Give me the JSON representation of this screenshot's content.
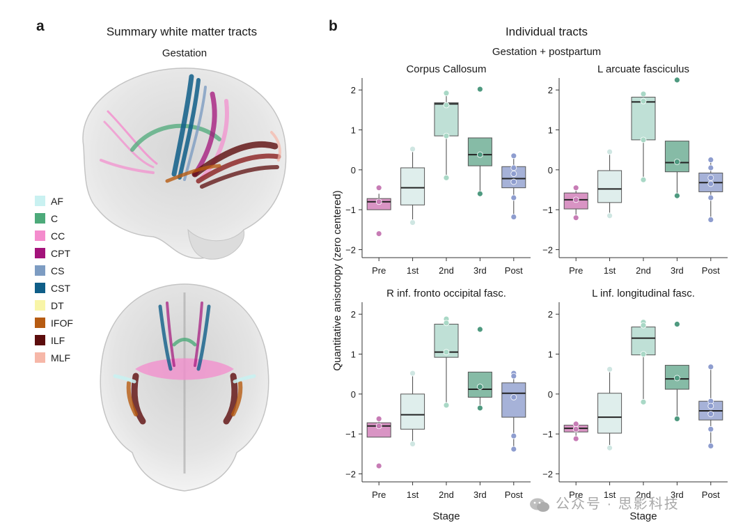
{
  "panel_a": {
    "letter": "a",
    "title": "Summary white matter tracts",
    "subtitle": "Gestation",
    "legend": [
      {
        "label": "AF",
        "color": "#c9f1f1"
      },
      {
        "label": "C",
        "color": "#4daa7a"
      },
      {
        "label": "CC",
        "color": "#f48ccd"
      },
      {
        "label": "CPT",
        "color": "#a3137a"
      },
      {
        "label": "CS",
        "color": "#7d9cc2"
      },
      {
        "label": "CST",
        "color": "#0f5e88"
      },
      {
        "label": "DT",
        "color": "#f8f5a8"
      },
      {
        "label": "IFOF",
        "color": "#b65b12"
      },
      {
        "label": "ILF",
        "color": "#5c0d0d"
      },
      {
        "label": "MLF",
        "color": "#f6b7a8"
      }
    ]
  },
  "panel_b": {
    "letter": "b",
    "title": "Individual tracts",
    "subtitle": "Gestation + postpartum",
    "ylabel": "Quantitative anisotropy (zero centered)",
    "xlabel": "Stage"
  },
  "chart_data": [
    {
      "type": "box",
      "title": "Corpus Callosum",
      "categories": [
        "Pre",
        "1st",
        "2nd",
        "3rd",
        "Post"
      ],
      "ylim": [
        -2.2,
        2.3
      ],
      "yticks": [
        -2,
        -1,
        0,
        1,
        2
      ],
      "colors": [
        "#d994c4",
        "#dfeeec",
        "#bfe0d6",
        "#86bba6",
        "#a6b2d8"
      ],
      "point_colors": [
        "#c77cb5",
        "#cfe6e2",
        "#a9d8c6",
        "#4f9a80",
        "#8e9dcf"
      ],
      "boxes": [
        {
          "q1": -1.0,
          "median": -0.8,
          "q3": -0.72,
          "whisker_low": -1.0,
          "whisker_high": -0.6,
          "points": [
            -0.45,
            -0.8,
            -1.6
          ]
        },
        {
          "q1": -0.88,
          "median": -0.45,
          "q3": 0.05,
          "whisker_low": -1.3,
          "whisker_high": 0.5,
          "points": [
            0.52,
            -1.32
          ]
        },
        {
          "q1": 0.85,
          "median": 1.65,
          "q3": 1.68,
          "whisker_low": -0.2,
          "whisker_high": 1.9,
          "points": [
            1.92,
            1.62,
            0.85,
            -0.2
          ]
        },
        {
          "q1": 0.1,
          "median": 0.38,
          "q3": 0.8,
          "whisker_low": -0.6,
          "whisker_high": 0.8,
          "points": [
            2.02,
            0.38,
            -0.6
          ]
        },
        {
          "q1": -0.45,
          "median": -0.22,
          "q3": 0.08,
          "whisker_low": -1.18,
          "whisker_high": 0.35,
          "points": [
            0.35,
            0.05,
            -0.1,
            -0.3,
            -0.7,
            -1.18
          ]
        }
      ]
    },
    {
      "type": "box",
      "title": "L arcuate fasciculus",
      "categories": [
        "Pre",
        "1st",
        "2nd",
        "3rd",
        "Post"
      ],
      "ylim": [
        -2.2,
        2.3
      ],
      "yticks": [
        -2,
        -1,
        0,
        1,
        2
      ],
      "colors": [
        "#d994c4",
        "#dfeeec",
        "#bfe0d6",
        "#86bba6",
        "#a6b2d8"
      ],
      "point_colors": [
        "#c77cb5",
        "#cfe6e2",
        "#a9d8c6",
        "#4f9a80",
        "#8e9dcf"
      ],
      "boxes": [
        {
          "q1": -0.98,
          "median": -0.75,
          "q3": -0.58,
          "whisker_low": -1.2,
          "whisker_high": -0.45,
          "points": [
            -0.45,
            -0.75,
            -1.2
          ]
        },
        {
          "q1": -0.82,
          "median": -0.48,
          "q3": -0.02,
          "whisker_low": -1.15,
          "whisker_high": 0.45,
          "points": [
            0.45,
            -1.15
          ]
        },
        {
          "q1": 0.75,
          "median": 1.7,
          "q3": 1.82,
          "whisker_low": -0.25,
          "whisker_high": 1.9,
          "points": [
            1.9,
            1.72,
            0.75,
            -0.25
          ]
        },
        {
          "q1": -0.05,
          "median": 0.18,
          "q3": 0.72,
          "whisker_low": -0.65,
          "whisker_high": 0.72,
          "points": [
            2.25,
            0.2,
            -0.65
          ]
        },
        {
          "q1": -0.55,
          "median": -0.32,
          "q3": -0.08,
          "whisker_low": -1.25,
          "whisker_high": 0.25,
          "points": [
            0.25,
            0.05,
            -0.2,
            -0.35,
            -0.7,
            -1.25
          ]
        }
      ]
    },
    {
      "type": "box",
      "title": "R inf. fronto occipital fasc.",
      "categories": [
        "Pre",
        "1st",
        "2nd",
        "3rd",
        "Post"
      ],
      "ylim": [
        -2.2,
        2.3
      ],
      "yticks": [
        -2,
        -1,
        0,
        1,
        2
      ],
      "colors": [
        "#d994c4",
        "#dfeeec",
        "#bfe0d6",
        "#86bba6",
        "#a6b2d8"
      ],
      "point_colors": [
        "#c77cb5",
        "#cfe6e2",
        "#a9d8c6",
        "#4f9a80",
        "#8e9dcf"
      ],
      "boxes": [
        {
          "q1": -1.08,
          "median": -0.8,
          "q3": -0.72,
          "whisker_low": -1.08,
          "whisker_high": -0.62,
          "points": [
            -0.62,
            -0.8,
            -1.8
          ]
        },
        {
          "q1": -0.88,
          "median": -0.52,
          "q3": 0.0,
          "whisker_low": -1.25,
          "whisker_high": 0.52,
          "points": [
            0.52,
            -1.25
          ]
        },
        {
          "q1": 0.92,
          "median": 1.05,
          "q3": 1.75,
          "whisker_low": -0.28,
          "whisker_high": 1.88,
          "points": [
            1.88,
            1.78,
            1.05,
            -0.28
          ]
        },
        {
          "q1": -0.08,
          "median": 0.12,
          "q3": 0.55,
          "whisker_low": -0.35,
          "whisker_high": 0.55,
          "points": [
            1.62,
            0.18,
            -0.35
          ]
        },
        {
          "q1": -0.58,
          "median": 0.02,
          "q3": 0.28,
          "whisker_low": -1.38,
          "whisker_high": 0.52,
          "points": [
            0.52,
            0.45,
            -0.08,
            -1.05,
            -1.38
          ]
        }
      ]
    },
    {
      "type": "box",
      "title": "L inf. longitudinal fasc.",
      "categories": [
        "Pre",
        "1st",
        "2nd",
        "3rd",
        "Post"
      ],
      "ylim": [
        -2.2,
        2.3
      ],
      "yticks": [
        -2,
        -1,
        0,
        1,
        2
      ],
      "colors": [
        "#d994c4",
        "#dfeeec",
        "#bfe0d6",
        "#86bba6",
        "#a6b2d8"
      ],
      "point_colors": [
        "#c77cb5",
        "#cfe6e2",
        "#a9d8c6",
        "#4f9a80",
        "#8e9dcf"
      ],
      "boxes": [
        {
          "q1": -0.95,
          "median": -0.86,
          "q3": -0.78,
          "whisker_low": -1.12,
          "whisker_high": -0.72,
          "points": [
            -0.75,
            -0.88,
            -1.12
          ]
        },
        {
          "q1": -0.98,
          "median": -0.58,
          "q3": 0.02,
          "whisker_low": -1.35,
          "whisker_high": 0.62,
          "points": [
            0.62,
            -1.35
          ]
        },
        {
          "q1": 0.98,
          "median": 1.4,
          "q3": 1.68,
          "whisker_low": -0.2,
          "whisker_high": 1.8,
          "points": [
            1.8,
            1.72,
            1.0,
            -0.2
          ]
        },
        {
          "q1": 0.12,
          "median": 0.38,
          "q3": 0.72,
          "whisker_low": -0.62,
          "whisker_high": 0.72,
          "points": [
            1.75,
            0.4,
            -0.62
          ]
        },
        {
          "q1": -0.65,
          "median": -0.42,
          "q3": -0.18,
          "whisker_low": -1.3,
          "whisker_high": 0.68,
          "points": [
            0.68,
            -0.18,
            -0.3,
            -0.5,
            -0.88,
            -1.3
          ]
        }
      ]
    }
  ],
  "watermark": {
    "text": "公众号 · 思影科技"
  }
}
